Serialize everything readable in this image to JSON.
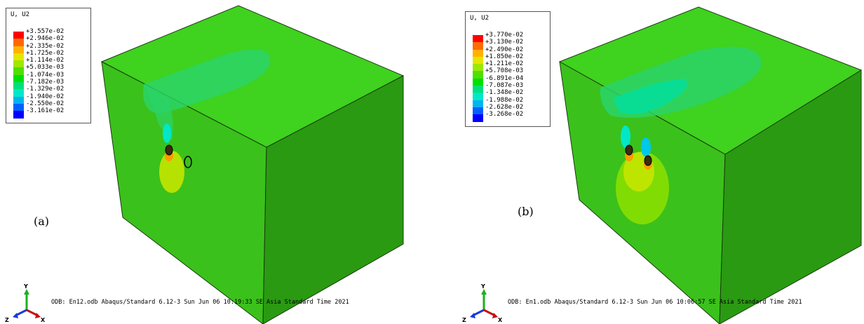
{
  "panels": [
    {
      "id": "a",
      "legend": {
        "title": "U, U2",
        "values": [
          "+3.557e-02",
          "+2.946e-02",
          "+2.335e-02",
          "+1.725e-02",
          "+1.114e-02",
          "+5.033e-03",
          "-1.074e-03",
          "-7.182e-03",
          "-1.329e-02",
          "-1.940e-02",
          "-2.550e-02",
          "-3.161e-02"
        ]
      },
      "label": "(a)",
      "info": "ODB: En12.odb    Abaqus/Standard 6.12-3    Sun Jun 06 10:19:33 SE Asia Standard Time 2021",
      "triad": {
        "y": "Y",
        "z": "Z",
        "x": "X"
      }
    },
    {
      "id": "b",
      "legend": {
        "title": "U, U2",
        "values": [
          "+3.770e-02",
          "+3.130e-02",
          "+2.490e-02",
          "+1.850e-02",
          "+1.211e-02",
          "+5.708e-03",
          "-6.891e-04",
          "-7.087e-03",
          "-1.348e-02",
          "-1.988e-02",
          "-2.628e-02",
          "-3.268e-02"
        ]
      },
      "label": "(b)",
      "info": "ODB: En1.odb    Abaqus/Standard 6.12-3    Sun Jun 06 10:06:57 SE Asia Standard Time 2021",
      "triad": {
        "y": "Y",
        "z": "Z",
        "x": "X"
      }
    }
  ],
  "colors": {
    "legend_scale": [
      "#ff0000",
      "#ff6a00",
      "#ffb300",
      "#e6e600",
      "#9ee800",
      "#4fe000",
      "#00e000",
      "#00e07a",
      "#00e8c8",
      "#00b4f0",
      "#0060ff",
      "#0000ff"
    ],
    "cube_front": "#3bc11b",
    "cube_top": "#3fd21e",
    "cube_side": "#2a9a12",
    "edge": "#1a3a10"
  }
}
